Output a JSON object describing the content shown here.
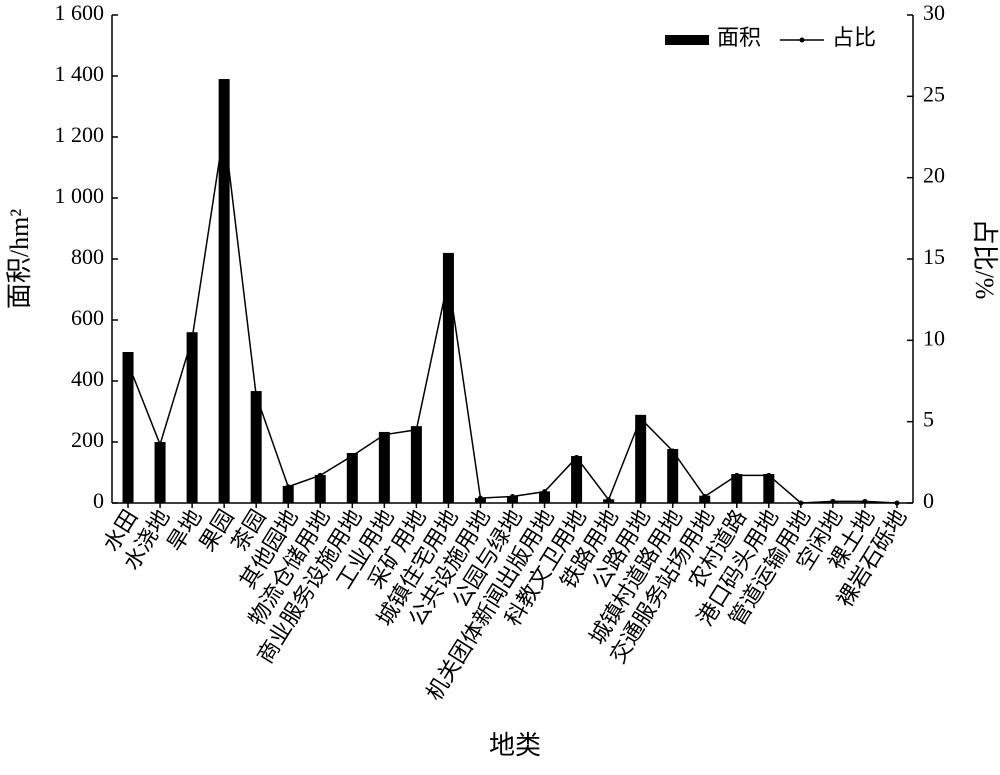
{
  "chart_data": {
    "type": "bar-line",
    "x_label": "地类",
    "y_label": "面积/hm²",
    "y2_label": "占比/%",
    "categories": [
      "水田",
      "水浇地",
      "旱地",
      "果园",
      "茶园",
      "其他园地",
      "物流仓储用地",
      "商业服务设施用地",
      "工业用地",
      "采矿用地",
      "城镇住宅用地",
      "公共设施用地",
      "公园与绿地",
      "机关团体新闻出版用地",
      "科教文卫用地",
      "铁路用地",
      "公路用地",
      "城镇村道路用地",
      "交通服务站场用地",
      "农村道路",
      "港口码头用地",
      "管道运输用地",
      "空闲地",
      "裸土地",
      "裸岩石砾地"
    ],
    "series": [
      {
        "name": "面积",
        "type": "bar",
        "color": "#000000",
        "values": [
          495,
          200,
          560,
          1390,
          367,
          56,
          92,
          164,
          233,
          252,
          820,
          16,
          22,
          38,
          154,
          12,
          289,
          177,
          24,
          95,
          95,
          1,
          3,
          3,
          1
        ]
      },
      {
        "name": "占比",
        "type": "line",
        "axis": "y2",
        "color": "#000000",
        "values": [
          8.6,
          3.6,
          10.1,
          23.0,
          6.6,
          1.0,
          1.7,
          2.9,
          4.2,
          4.5,
          13.8,
          0.3,
          0.4,
          0.7,
          2.8,
          0.2,
          5.2,
          3.2,
          0.4,
          1.7,
          1.7,
          0.0,
          0.1,
          0.1,
          0.0
        ]
      }
    ],
    "ylim": [
      0,
      1600
    ],
    "yticks": [
      0,
      200,
      400,
      600,
      800,
      {
        "value": 1000,
        "label": "1 000"
      },
      {
        "value": 1200,
        "label": "1 200"
      },
      {
        "value": 1400,
        "label": "1 400"
      },
      {
        "value": 1600,
        "label": "1 600"
      }
    ],
    "y2lim": [
      0,
      30
    ],
    "y2ticks": [
      0,
      5,
      10,
      15,
      20,
      25,
      30
    ],
    "legend": "top-right"
  }
}
